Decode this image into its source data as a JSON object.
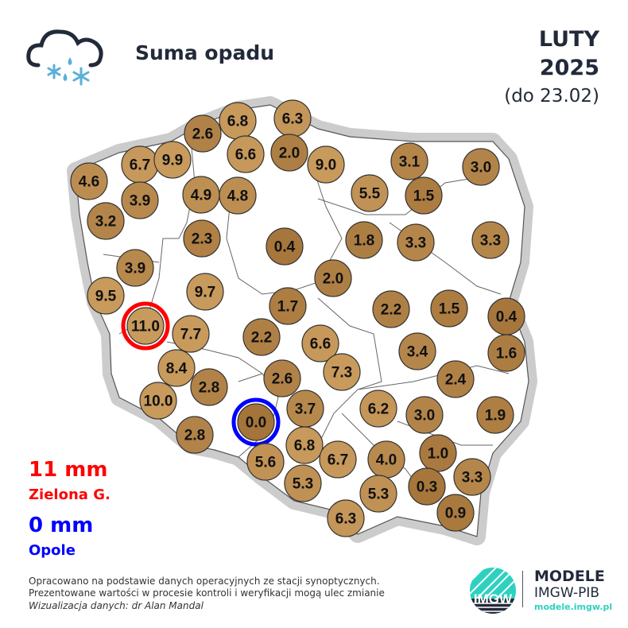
{
  "header": {
    "title": "Suma opadu",
    "month": "LUTY",
    "year": "2025",
    "range": "(do 23.02)",
    "icon": "cloud-rain-snow-icon"
  },
  "colors": {
    "light": "#c89a5c",
    "dark": "#a4743a",
    "max_ring": "#ff0000",
    "min_ring": "#0000ff",
    "outline_shadow": "#bbbbbb"
  },
  "stations": [
    {
      "value": "4.6"
    },
    {
      "value": "6.7"
    },
    {
      "value": "9.9"
    },
    {
      "value": "2.6"
    },
    {
      "value": "6.8"
    },
    {
      "value": "6.3"
    },
    {
      "value": "6.6"
    },
    {
      "value": "2.0"
    },
    {
      "value": "9.0"
    },
    {
      "value": "3.1"
    },
    {
      "value": "3.0"
    },
    {
      "value": "3.9"
    },
    {
      "value": "4.9"
    },
    {
      "value": "4.8"
    },
    {
      "value": "5.5"
    },
    {
      "value": "1.5"
    },
    {
      "value": "3.2"
    },
    {
      "value": "2.3"
    },
    {
      "value": "0.4"
    },
    {
      "value": "1.8"
    },
    {
      "value": "3.3"
    },
    {
      "value": "3.3"
    },
    {
      "value": "3.9"
    },
    {
      "value": "9.7"
    },
    {
      "value": "2.0"
    },
    {
      "value": "9.5"
    },
    {
      "value": "1.7"
    },
    {
      "value": "2.2"
    },
    {
      "value": "1.5"
    },
    {
      "value": "0.4"
    },
    {
      "value": "11.0",
      "highlight": "max"
    },
    {
      "value": "7.7"
    },
    {
      "value": "2.2"
    },
    {
      "value": "6.6"
    },
    {
      "value": "3.4"
    },
    {
      "value": "1.6"
    },
    {
      "value": "8.4"
    },
    {
      "value": "7.3"
    },
    {
      "value": "2.4"
    },
    {
      "value": "2.8"
    },
    {
      "value": "2.6"
    },
    {
      "value": "10.0"
    },
    {
      "value": "3.7"
    },
    {
      "value": "6.2"
    },
    {
      "value": "3.0"
    },
    {
      "value": "1.9"
    },
    {
      "value": "0.0",
      "highlight": "min"
    },
    {
      "value": "2.8"
    },
    {
      "value": "6.8"
    },
    {
      "value": "6.7"
    },
    {
      "value": "4.0"
    },
    {
      "value": "1.0"
    },
    {
      "value": "5.6"
    },
    {
      "value": "3.3"
    },
    {
      "value": "0.3"
    },
    {
      "value": "5.3"
    },
    {
      "value": "5.3"
    },
    {
      "value": "6.3"
    },
    {
      "value": "0.9"
    }
  ],
  "legend": {
    "max_value": "11 mm",
    "max_station": "Zielona G.",
    "min_value": "0 mm",
    "min_station": "Opole"
  },
  "footer": {
    "note1": "Opracowano na podstawie danych operacyjnych ze stacji synoptycznych.",
    "note2": "Prezentowane wartości w procesie kontroli i weryfikacji mogą ulec zmianie",
    "credit": "Wizualizacja danych: dr Alan Mandal",
    "logo_text": "IMGW",
    "brand_line1": "MODELE",
    "brand_line2": "IMGW-PIB",
    "brand_url": "modele.imgw.pl"
  }
}
